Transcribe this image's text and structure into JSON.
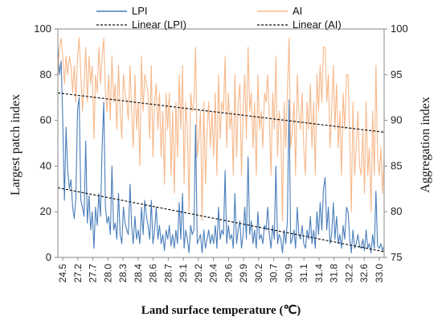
{
  "chart_data": {
    "type": "line",
    "title": "",
    "xlabel": "Land surface temperature (℃)",
    "ylabel": "Largest patch index",
    "ylabel_right": "Aggregation index",
    "ylim": [
      0,
      100
    ],
    "ylim_right": [
      75,
      100
    ],
    "y_ticks": [
      "0",
      "20",
      "40",
      "60",
      "80",
      "100"
    ],
    "y_ticks_right": [
      "75",
      "80",
      "85",
      "90",
      "95",
      "100"
    ],
    "x_ticks": [
      "24.5",
      "27.2",
      "27.7",
      "28.0",
      "28.3",
      "28.4",
      "28.6",
      "28.7",
      "29.1",
      "29.2",
      "29.4",
      "29.6",
      "29.9",
      "30.2",
      "30.7",
      "30.9",
      "31.1",
      "31.4",
      "31.8",
      "32.2",
      "32.6",
      "33.0"
    ],
    "n_points": 200,
    "legend": {
      "placement": "top",
      "items": [
        {
          "name": "LPI",
          "color": "#4a7ebb",
          "style": "solid"
        },
        {
          "name": "AI",
          "color": "#f7b88a",
          "style": "solid"
        },
        {
          "name": "Linear (LPI)",
          "color": "#111111",
          "style": "dashed"
        },
        {
          "name": "Linear (AI)",
          "color": "#111111",
          "style": "dashed"
        }
      ]
    },
    "series": [
      {
        "name": "LPI",
        "axis": "left",
        "color": "#4a7ebb",
        "values": [
          92,
          80,
          86,
          60,
          25,
          57,
          38,
          30,
          34,
          22,
          17,
          26,
          65,
          70,
          25,
          22,
          18,
          51,
          15,
          27,
          12,
          20,
          4,
          22,
          14,
          28,
          18,
          48,
          68,
          22,
          15,
          18,
          10,
          40,
          12,
          15,
          8,
          28,
          10,
          6,
          22,
          15,
          12,
          10,
          32,
          14,
          6,
          18,
          8,
          12,
          6,
          22,
          10,
          25,
          18,
          14,
          8,
          25,
          6,
          12,
          22,
          8,
          14,
          6,
          10,
          3,
          12,
          8,
          14,
          5,
          10,
          4,
          12,
          6,
          24,
          8,
          28,
          4,
          12,
          8,
          2,
          14,
          10,
          12,
          58,
          6,
          8,
          10,
          2,
          12,
          4,
          8,
          12,
          6,
          10,
          6,
          14,
          4,
          22,
          8,
          12,
          10,
          38,
          6,
          14,
          8,
          10,
          4,
          28,
          6,
          12,
          16,
          4,
          10,
          22,
          8,
          44,
          10,
          16,
          6,
          12,
          4,
          20,
          8,
          10,
          6,
          14,
          12,
          22,
          10,
          4,
          14,
          8,
          40,
          6,
          10,
          8,
          2,
          12,
          6,
          16,
          69,
          6,
          8,
          12,
          4,
          22,
          10,
          8,
          14,
          6,
          4,
          12,
          8,
          18,
          6,
          12,
          4,
          20,
          10,
          24,
          12,
          30,
          35,
          12,
          22,
          6,
          10,
          24,
          8,
          18,
          6,
          10,
          4,
          14,
          8,
          22,
          20,
          8,
          2,
          12,
          4,
          6,
          10,
          5,
          4,
          8,
          3,
          12,
          4,
          6,
          2,
          10,
          4,
          29,
          5,
          4,
          6,
          3,
          5
        ]
      },
      {
        "name": "AI",
        "axis": "right",
        "color": "#f7b88a",
        "values": [
          95,
          98,
          99,
          97,
          94,
          97,
          95,
          97,
          96,
          93,
          96,
          92,
          97,
          99,
          95,
          91,
          94,
          98,
          92,
          97,
          94,
          96,
          88,
          95,
          93,
          98,
          94,
          97,
          99,
          93,
          91,
          95,
          90,
          97,
          92,
          94,
          89,
          96,
          91,
          88,
          95,
          93,
          92,
          90,
          96,
          91,
          87,
          95,
          89,
          92,
          85,
          97,
          91,
          95,
          94,
          93,
          88,
          96,
          86,
          92,
          94,
          89,
          93,
          86,
          91,
          83,
          93,
          89,
          93,
          84,
          91,
          82,
          92,
          86,
          95,
          89,
          96,
          83,
          92,
          89,
          80,
          93,
          91,
          92,
          98,
          86,
          88,
          91,
          79,
          92,
          83,
          89,
          92,
          87,
          91,
          86,
          93,
          84,
          95,
          88,
          92,
          91,
          97,
          87,
          93,
          89,
          91,
          84,
          95,
          86,
          92,
          94,
          84,
          91,
          95,
          88,
          98,
          91,
          93,
          87,
          92,
          84,
          95,
          89,
          91,
          87,
          93,
          92,
          95,
          90,
          84,
          93,
          89,
          97,
          86,
          91,
          89,
          79,
          92,
          87,
          93,
          99,
          87,
          89,
          92,
          84,
          95,
          91,
          89,
          93,
          87,
          84,
          92,
          89,
          94,
          87,
          92,
          84,
          95,
          91,
          96,
          92,
          98,
          98,
          92,
          95,
          87,
          91,
          96,
          89,
          94,
          87,
          91,
          84,
          93,
          89,
          95,
          95,
          88,
          80,
          92,
          84,
          87,
          91,
          85,
          84,
          89,
          82,
          92,
          84,
          87,
          80,
          91,
          84,
          96,
          86,
          84,
          87,
          82,
          86
        ]
      }
    ],
    "trendlines": [
      {
        "name": "Linear (LPI)",
        "of": "LPI",
        "start": 30.5,
        "end": 2.5
      },
      {
        "name": "Linear (AI)",
        "of": "AI",
        "start": 93.0,
        "end": 88.7
      }
    ]
  }
}
